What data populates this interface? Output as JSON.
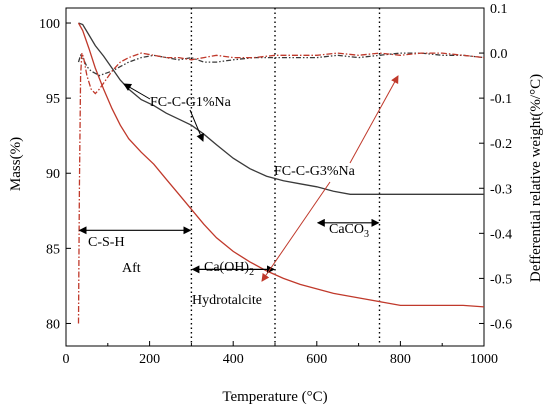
{
  "chart_data": {
    "type": "line",
    "xlabel": "Temperature  (°C)",
    "ylabel_left": "Mass(%)",
    "ylabel_right": "Defferential relative weight(%/°C)",
    "xlim": [
      0,
      1000
    ],
    "ylim_left": [
      78.5,
      101
    ],
    "ylim_right": [
      -0.65,
      0.1
    ],
    "xticks": [
      0,
      200,
      400,
      600,
      800,
      1000
    ],
    "yticks_left": [
      80,
      85,
      90,
      95,
      100
    ],
    "yticks_right": [
      0.1,
      0.0,
      -0.1,
      -0.2,
      -0.3,
      -0.4,
      -0.5,
      -0.6
    ],
    "xtick_labels": [
      "0",
      "200",
      "400",
      "600",
      "800",
      "1000"
    ],
    "ytick_labels_left": [
      "80",
      "85",
      "90",
      "95",
      "100"
    ],
    "ytick_labels_right": [
      "0.1",
      "0.0",
      "-0.1",
      "-0.2",
      "-0.3",
      "-0.4",
      "-0.5",
      "-0.6"
    ],
    "vlines": [
      300,
      500,
      750
    ],
    "series": [
      {
        "name": "FC-C-G1%Na",
        "axis": "left",
        "kind": "TG",
        "color": "#3a3a3a",
        "x": [
          30,
          40,
          55,
          70,
          90,
          110,
          130,
          150,
          180,
          210,
          240,
          270,
          300,
          330,
          360,
          400,
          440,
          480,
          520,
          560,
          600,
          640,
          680,
          720,
          760,
          800,
          850,
          900,
          950,
          1000
        ],
        "y": [
          100.0,
          99.9,
          99.2,
          98.5,
          97.8,
          97.0,
          96.2,
          95.6,
          94.9,
          94.5,
          94.0,
          93.6,
          93.2,
          92.6,
          91.9,
          91.0,
          90.3,
          89.8,
          89.5,
          89.3,
          89.1,
          88.8,
          88.6,
          88.6,
          88.6,
          88.6,
          88.6,
          88.6,
          88.6,
          88.6
        ]
      },
      {
        "name": "FC-C-G3%Na",
        "axis": "left",
        "kind": "TG",
        "color": "#c0392b",
        "x": [
          30,
          40,
          55,
          70,
          90,
          110,
          130,
          150,
          180,
          210,
          240,
          270,
          300,
          330,
          360,
          400,
          440,
          480,
          520,
          560,
          600,
          640,
          680,
          720,
          760,
          780,
          800,
          850,
          900,
          950,
          1000
        ],
        "y": [
          100.0,
          99.5,
          98.3,
          97.0,
          95.6,
          94.3,
          93.2,
          92.3,
          91.4,
          90.6,
          89.6,
          88.6,
          87.6,
          86.6,
          85.7,
          84.8,
          84.1,
          83.5,
          83.0,
          82.6,
          82.3,
          82.0,
          81.8,
          81.6,
          81.4,
          81.3,
          81.2,
          81.2,
          81.2,
          81.2,
          81.1
        ]
      },
      {
        "name": "FC-C-G1%Na DTG",
        "axis": "right",
        "kind": "DTG",
        "color": "#3a3a3a",
        "x": [
          30,
          35,
          40,
          45,
          50,
          60,
          70,
          80,
          95,
          110,
          130,
          150,
          180,
          210,
          240,
          270,
          300,
          330,
          360,
          400,
          450,
          500,
          550,
          600,
          650,
          700,
          750,
          800,
          850,
          900,
          950,
          1000
        ],
        "y": [
          -0.02,
          -0.005,
          -0.01,
          -0.02,
          -0.03,
          -0.04,
          -0.045,
          -0.05,
          -0.045,
          -0.04,
          -0.03,
          -0.02,
          -0.01,
          -0.005,
          -0.01,
          -0.015,
          -0.01,
          -0.02,
          -0.02,
          -0.015,
          -0.01,
          -0.01,
          -0.01,
          -0.01,
          -0.005,
          -0.01,
          -0.005,
          0.0,
          0.0,
          -0.005,
          -0.005,
          -0.01
        ]
      },
      {
        "name": "FC-C-G3%Na DTG",
        "axis": "right",
        "kind": "DTG",
        "color": "#c0392b",
        "x": [
          30,
          32,
          35,
          38,
          42,
          50,
          60,
          70,
          80,
          95,
          110,
          130,
          150,
          180,
          210,
          240,
          270,
          300,
          330,
          360,
          400,
          450,
          500,
          550,
          600,
          650,
          700,
          750,
          800,
          850,
          900,
          950,
          1000
        ],
        "y": [
          -0.6,
          -0.3,
          -0.05,
          0.0,
          -0.01,
          -0.05,
          -0.08,
          -0.09,
          -0.08,
          -0.06,
          -0.04,
          -0.02,
          -0.01,
          0.0,
          -0.005,
          -0.01,
          -0.01,
          -0.015,
          -0.01,
          -0.005,
          -0.01,
          -0.01,
          -0.005,
          -0.005,
          -0.005,
          0.0,
          -0.005,
          0.0,
          -0.005,
          0.0,
          0.0,
          -0.005,
          -0.01
        ]
      }
    ],
    "annotations": [
      {
        "text": "FC-C-G1%Na",
        "color": "#000000"
      },
      {
        "text": "FC-C-G3%Na",
        "color": "#c0392b"
      },
      {
        "text": "C-S-H"
      },
      {
        "text": "Aft"
      },
      {
        "text": "Ca(OH)",
        "sub": "2"
      },
      {
        "text": "Hydrotalcite"
      },
      {
        "text": "CaCO",
        "sub": "3"
      }
    ],
    "ranges": [
      {
        "from": 30,
        "to": 300,
        "y": 86.2
      },
      {
        "from": 300,
        "to": 500,
        "y": 83.6
      },
      {
        "from": 600,
        "to": 750,
        "y": 86.7
      }
    ],
    "grid": false,
    "legend": "none"
  }
}
